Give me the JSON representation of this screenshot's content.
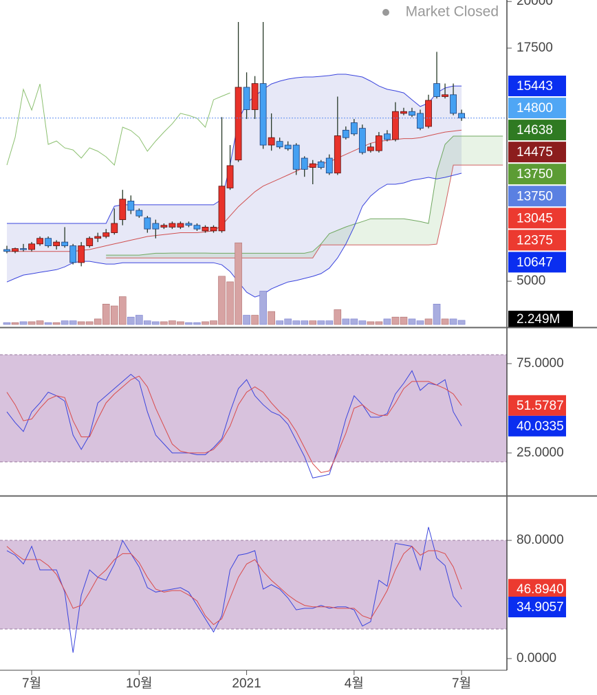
{
  "chart_data": [
    {
      "type": "candlestick",
      "status": "Market Closed",
      "open": [
        6700,
        6600,
        6750,
        6700,
        7000,
        7300,
        6900,
        7100,
        6900,
        6000,
        6900,
        7300,
        7400,
        7600,
        8300,
        9300,
        8800,
        8400,
        8100,
        7900,
        7900,
        7900,
        8100,
        8000,
        7700,
        7700,
        7700,
        10000,
        11500,
        15400,
        14200,
        15600,
        12300,
        12500,
        12300,
        12300,
        11600,
        11100,
        11400,
        11600,
        10800,
        13100,
        13500,
        13200,
        12000,
        12000,
        12900,
        12600,
        14000,
        14100,
        14000,
        13300,
        15600,
        14900,
        15000,
        14000
      ],
      "high": [
        6900,
        6800,
        7000,
        7100,
        7400,
        7400,
        7200,
        7900,
        7000,
        7100,
        7400,
        7600,
        7800,
        8900,
        9900,
        9600,
        8900,
        8500,
        8300,
        8100,
        8200,
        8200,
        8200,
        8100,
        8000,
        8000,
        13800,
        12300,
        18900,
        16200,
        16000,
        18900,
        14000,
        12700,
        12500,
        12400,
        11700,
        11500,
        11500,
        11800,
        14900,
        13300,
        13700,
        13400,
        12400,
        13000,
        13100,
        14600,
        14300,
        14300,
        14200,
        15000,
        17300,
        15600,
        15600,
        14200
      ],
      "low": [
        6500,
        6500,
        6600,
        6600,
        6900,
        6800,
        6700,
        6800,
        5900,
        5800,
        6800,
        7100,
        7300,
        7500,
        8000,
        8600,
        8400,
        7600,
        7300,
        7800,
        7800,
        7800,
        7900,
        7700,
        7600,
        7600,
        7600,
        9900,
        11400,
        13700,
        13700,
        12100,
        12000,
        12100,
        12000,
        10700,
        10600,
        10200,
        11000,
        10700,
        10700,
        12600,
        12800,
        11800,
        11900,
        11900,
        12500,
        12500,
        13900,
        13800,
        13100,
        13200,
        14800,
        14800,
        13900,
        13600
      ],
      "close": [
        6600,
        6750,
        6700,
        7000,
        7300,
        6900,
        7100,
        6900,
        6000,
        6900,
        7300,
        7400,
        7600,
        8100,
        9400,
        8800,
        8500,
        7800,
        7800,
        8000,
        8100,
        8100,
        8000,
        7800,
        7900,
        7900,
        10100,
        11200,
        15400,
        14200,
        15600,
        12300,
        12700,
        12200,
        12100,
        11000,
        11000,
        11300,
        11100,
        10800,
        12800,
        12700,
        12900,
        11900,
        12200,
        12800,
        12600,
        14100,
        14100,
        13900,
        13200,
        14700,
        14900,
        15000,
        14000,
        13750
      ],
      "up_color": "#e8322a",
      "down_color": "#45a0f2",
      "wick_color": "#263826",
      "ylim": [
        2570,
        20080
      ],
      "yticks": [
        5000,
        17500,
        20000
      ],
      "overlays": {
        "bb_upper": {
          "color": "#3a44dd",
          "values": [
            8100,
            8100,
            8100,
            8100,
            8100,
            8100,
            8100,
            8100,
            8100,
            8100,
            8100,
            8100,
            8100,
            9020,
            9100,
            9100,
            9100,
            9100,
            9100,
            9100,
            9100,
            9100,
            9100,
            9100,
            9100,
            9100,
            9390,
            11230,
            13630,
            14550,
            14920,
            15290,
            15580,
            15730,
            15840,
            15910,
            15950,
            15950,
            15990,
            16030,
            16100,
            16100,
            16030,
            15950,
            15730,
            15470,
            15290,
            15210,
            15100,
            14730,
            14370,
            14550,
            15100,
            15360,
            15470,
            15470
          ]
        },
        "bb_mid": {
          "color": "#d05050",
          "values": [
            6600,
            6600,
            6600,
            6600,
            6600,
            6600,
            6600,
            6600,
            6600,
            6650,
            6700,
            6800,
            6900,
            7000,
            7100,
            7200,
            7300,
            7400,
            7450,
            7500,
            7550,
            7600,
            7600,
            7600,
            7650,
            7700,
            8000,
            8500,
            9000,
            9400,
            9800,
            10100,
            10300,
            10500,
            10700,
            10900,
            11100,
            11200,
            11300,
            11400,
            11600,
            11800,
            12000,
            12200,
            12400,
            12500,
            12550,
            12600,
            12650,
            12650,
            12700,
            12800,
            12900,
            13000,
            13050,
            13100
          ]
        },
        "bb_lower": {
          "color": "#3a44dd",
          "values": [
            4960,
            5150,
            5330,
            5400,
            5480,
            5550,
            5620,
            5770,
            5990,
            6070,
            6070,
            5990,
            5920,
            5920,
            5990,
            5990,
            5990,
            5990,
            5990,
            5990,
            5990,
            5990,
            5990,
            5990,
            5990,
            5990,
            5880,
            5520,
            4960,
            4410,
            4150,
            4300,
            4590,
            4780,
            4960,
            5040,
            5150,
            5260,
            5410,
            5700,
            6250,
            6990,
            7910,
            9020,
            9570,
            9940,
            10200,
            10200,
            10270,
            10420,
            10490,
            10570,
            10490,
            10570,
            10680,
            10790
          ]
        },
        "lagging": {
          "color": "#8cc070",
          "values": [
            11230,
            12710,
            15290,
            14180,
            15580,
            12340,
            12520,
            12150,
            12040,
            11600,
            12150,
            11970,
            11670,
            11230,
            13260,
            13080,
            12710,
            11970,
            12520,
            13000,
            13440,
            14000,
            13890,
            13740,
            13260,
            14730,
            14920,
            15100,
            null,
            null,
            null,
            null,
            null,
            null,
            null,
            null,
            null,
            null,
            null,
            null,
            null,
            null,
            null,
            null,
            null,
            null,
            null,
            null,
            null,
            null,
            null,
            null,
            null,
            null,
            null,
            null
          ]
        },
        "cloud_a": {
          "color": "#70a860",
          "values": [
            null,
            null,
            null,
            null,
            null,
            null,
            null,
            null,
            null,
            null,
            null,
            null,
            6400,
            6400,
            6400,
            6400,
            6400,
            6450,
            6500,
            6500,
            6510,
            6510,
            6510,
            6510,
            6510,
            6500,
            6500,
            6500,
            6500,
            6500,
            6500,
            6500,
            6500,
            6500,
            6500,
            6500,
            6500,
            6600,
            7000,
            7550,
            7730,
            7910,
            8060,
            8200,
            8350,
            8350,
            8350,
            8350,
            8350,
            8280,
            8200,
            8100,
            10860,
            12340,
            12780,
            12780,
            12780,
            12780,
            12780,
            12780,
            12780
          ]
        },
        "cloud_b": {
          "color": "#d06060",
          "values": [
            null,
            null,
            null,
            null,
            null,
            null,
            null,
            null,
            null,
            null,
            null,
            null,
            6250,
            6250,
            6250,
            6250,
            6250,
            6250,
            6250,
            6250,
            6250,
            6250,
            6250,
            6250,
            6250,
            6250,
            6250,
            6250,
            6250,
            6250,
            6250,
            6250,
            6250,
            6250,
            6250,
            6250,
            6250,
            6250,
            6950,
            6950,
            6950,
            6950,
            6950,
            6950,
            6950,
            6950,
            6950,
            6950,
            6950,
            6950,
            6950,
            6950,
            6990,
            9020,
            11230,
            11230,
            11230,
            11230,
            11230,
            11230,
            11230
          ]
        }
      },
      "volume": {
        "ylim": [
          0,
          50
        ],
        "up_color": "#d7a3a3",
        "down_color": "#a9addf",
        "values": [
          1,
          1,
          1.5,
          1.5,
          2,
          1,
          1,
          2,
          2,
          1.5,
          1.5,
          3,
          11,
          10,
          15,
          4,
          5,
          2,
          1.5,
          1.5,
          2,
          1.5,
          1,
          1,
          1.5,
          2,
          26,
          23,
          44,
          5,
          5,
          18,
          7,
          2,
          3,
          2,
          2,
          2,
          2,
          2,
          8,
          3,
          3,
          2,
          1.5,
          1.5,
          3,
          4,
          4,
          3,
          2,
          3,
          11,
          3,
          3,
          2.249
        ],
        "badge": {
          "value": 2.249,
          "label": "2.249M"
        }
      },
      "badges": [
        {
          "value": 15443,
          "color": "#0a2ef0"
        },
        {
          "value": 14800,
          "color": "#4fa6f5"
        },
        {
          "value": 14638,
          "color": "#2f7a22"
        },
        {
          "value": 14475,
          "color": "#8c1d1d"
        },
        {
          "value": 13750,
          "color": "#5c9c34"
        },
        {
          "value": 13750,
          "color": "#5a80e2"
        },
        {
          "value": 13045,
          "color": "#ec3a30"
        },
        {
          "value": 12375,
          "color": "#ec3a30"
        },
        {
          "value": 10647,
          "color": "#0a2ef0"
        }
      ],
      "xticks": [
        {
          "value": 2,
          "label": "7월"
        },
        {
          "value": 15,
          "label": "10월"
        },
        {
          "value": 28,
          "label": "2021"
        },
        {
          "value": 41,
          "label": "4월"
        },
        {
          "value": 54,
          "label": "7월"
        }
      ]
    },
    {
      "type": "line",
      "ylim": [
        1.5,
        94.6
      ],
      "band": [
        20,
        80
      ],
      "band_color": "#d8c2dd",
      "yticks": [
        {
          "value": 25,
          "label": "25.0000"
        },
        {
          "value": 75,
          "label": "75.0000"
        }
      ],
      "series": [
        {
          "color": "#3a44dd",
          "values": [
            48,
            42,
            37,
            48,
            53,
            59,
            57,
            54,
            35,
            27,
            35,
            53,
            57,
            61,
            65,
            69,
            65,
            48,
            35,
            30,
            25,
            25,
            25,
            24,
            24,
            28,
            33,
            48,
            61,
            66,
            57,
            52,
            48,
            46,
            41,
            32,
            23,
            11,
            12,
            13,
            27,
            44,
            57,
            52,
            45,
            45,
            47,
            58,
            64,
            71,
            60,
            64,
            63,
            66,
            48,
            40.0335
          ]
        },
        {
          "color": "#d94a4a",
          "values": [
            59,
            52,
            43,
            44,
            50,
            55,
            57,
            56,
            43,
            34,
            34,
            44,
            53,
            58,
            62,
            66,
            68,
            62,
            50,
            40,
            30,
            26,
            25,
            25,
            25,
            27,
            32,
            40,
            52,
            59,
            62,
            59,
            53,
            48,
            44,
            37,
            28,
            19,
            14,
            15,
            25,
            36,
            50,
            52,
            48,
            46,
            46,
            53,
            61,
            65,
            65,
            65,
            63,
            61,
            58,
            51.5787
          ]
        }
      ],
      "badges": [
        {
          "value": 51.5787,
          "color": "#ec3a30"
        },
        {
          "value": 40.0335,
          "color": "#0a2ef0"
        }
      ]
    },
    {
      "type": "line",
      "ylim": [
        -7.9,
        109.8
      ],
      "band": [
        20,
        80
      ],
      "band_color": "#d8c2dd",
      "yticks": [
        {
          "value": 0,
          "label": "0.0000"
        },
        {
          "value": 80,
          "label": "80.0000"
        }
      ],
      "series": [
        {
          "color": "#3a44dd",
          "values": [
            73,
            70,
            64,
            76,
            60,
            60,
            60,
            45,
            4,
            43,
            60,
            55,
            53,
            64,
            80,
            71,
            62,
            48,
            45,
            46,
            47,
            48,
            45,
            36,
            27,
            18,
            29,
            60,
            70,
            71,
            73,
            47,
            50,
            47,
            41,
            33,
            34,
            34,
            36,
            34,
            35,
            35,
            33,
            22,
            25,
            53,
            49,
            78,
            77,
            76,
            60,
            89,
            68,
            63,
            42,
            34.9057
          ]
        },
        {
          "color": "#d94a4a",
          "values": [
            76,
            71,
            67,
            67,
            67,
            63,
            57,
            46,
            34,
            36,
            45,
            55,
            60,
            67,
            71,
            71,
            65,
            55,
            47,
            45,
            46,
            46,
            43,
            39,
            29,
            23,
            27,
            41,
            55,
            64,
            67,
            59,
            53,
            48,
            43,
            39,
            36,
            35,
            35,
            35,
            34,
            34,
            34,
            29,
            27,
            36,
            46,
            60,
            71,
            76,
            70,
            73,
            73,
            71,
            62,
            46.894
          ]
        }
      ],
      "badges": [
        {
          "value": 46.894,
          "label": "46.8940",
          "color": "#ec3a30"
        },
        {
          "value": 34.9057,
          "color": "#0a2ef0"
        }
      ]
    }
  ]
}
